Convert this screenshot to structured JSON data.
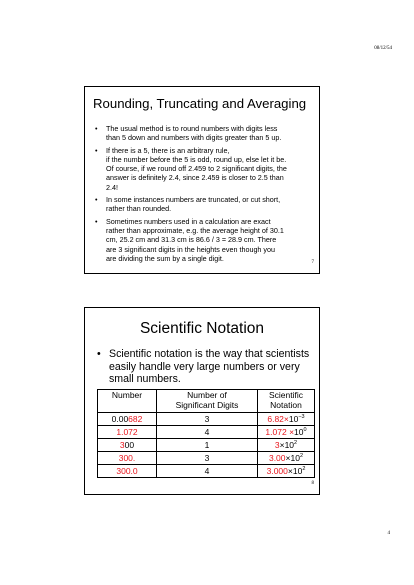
{
  "header": {
    "date": "08/12/54"
  },
  "page_number": "4",
  "slide1": {
    "number": "7",
    "title": "Rounding, Truncating and Averaging",
    "bullets": [
      {
        "bullet": "•",
        "lines": [
          "The usual method is to round numbers with digits less",
          "than 5 down and numbers with digits greater than 5 up."
        ]
      },
      {
        "bullet": "•",
        "lines": [
          "If there is a 5, there is an arbitrary rule,",
          "if the number before the 5 is odd, round up, else let it be.",
          "Of course, if we round off 2.459 to 2 significant digits, the",
          "answer is definitely 2.4, since 2.459 is closer to 2.5 than",
          "2.4!"
        ]
      },
      {
        "bullet": "•",
        "lines": [
          "In some instances numbers are truncated, or cut short,",
          "rather than rounded."
        ]
      },
      {
        "bullet": "•",
        "lines": [
          "Sometimes numbers used in a calculation are exact",
          "rather than approximate, e.g. the average height of 30.1",
          "cm, 25.2 cm and 31.3 cm is 86.6 / 3 = 28.9 cm. There",
          "are 3 significant digits in the heights even though you",
          "are dividing the sum by a single digit."
        ]
      }
    ]
  },
  "slide2": {
    "number": "8",
    "title": "Scientific Notation",
    "bullet": "•",
    "bullet_lines": [
      "Scientific notation is the way that scientists",
      "easily handle very large numbers or very",
      "small numbers."
    ],
    "table": {
      "headers": [
        [
          "Number"
        ],
        [
          "Number of",
          "Significant Digits"
        ],
        [
          "Scientific",
          "Notation"
        ]
      ],
      "rows": [
        {
          "num_black": "0.00",
          "num_red": "682",
          "sig": "3",
          "sci_mant": "6.82",
          "sci_times": "×",
          "sci_base": "10",
          "sci_exp": "−3",
          "sci_red": true
        },
        {
          "num_black": "",
          "num_red": "1.072",
          "sig": "4",
          "sci_mant": "1.072",
          "sci_times": " ×",
          "sci_base": "10",
          "sci_exp": "0",
          "sci_red": true
        },
        {
          "num_black": "00",
          "num_red": "3",
          "sig": "1",
          "sci_mant": "3",
          "sci_times": "×",
          "sci_base": "10",
          "sci_exp": "2",
          "sci_red": false
        },
        {
          "num_black": "",
          "num_red": "300.",
          "sig": "3",
          "sci_mant": "3.00",
          "sci_times": "×",
          "sci_base": "10",
          "sci_exp": "2",
          "sci_red": false
        },
        {
          "num_black": "",
          "num_red": "300.0",
          "sig": "4",
          "sci_mant": "3.000",
          "sci_times": "×",
          "sci_base": "10",
          "sci_exp": "2",
          "sci_red": false
        }
      ]
    }
  }
}
